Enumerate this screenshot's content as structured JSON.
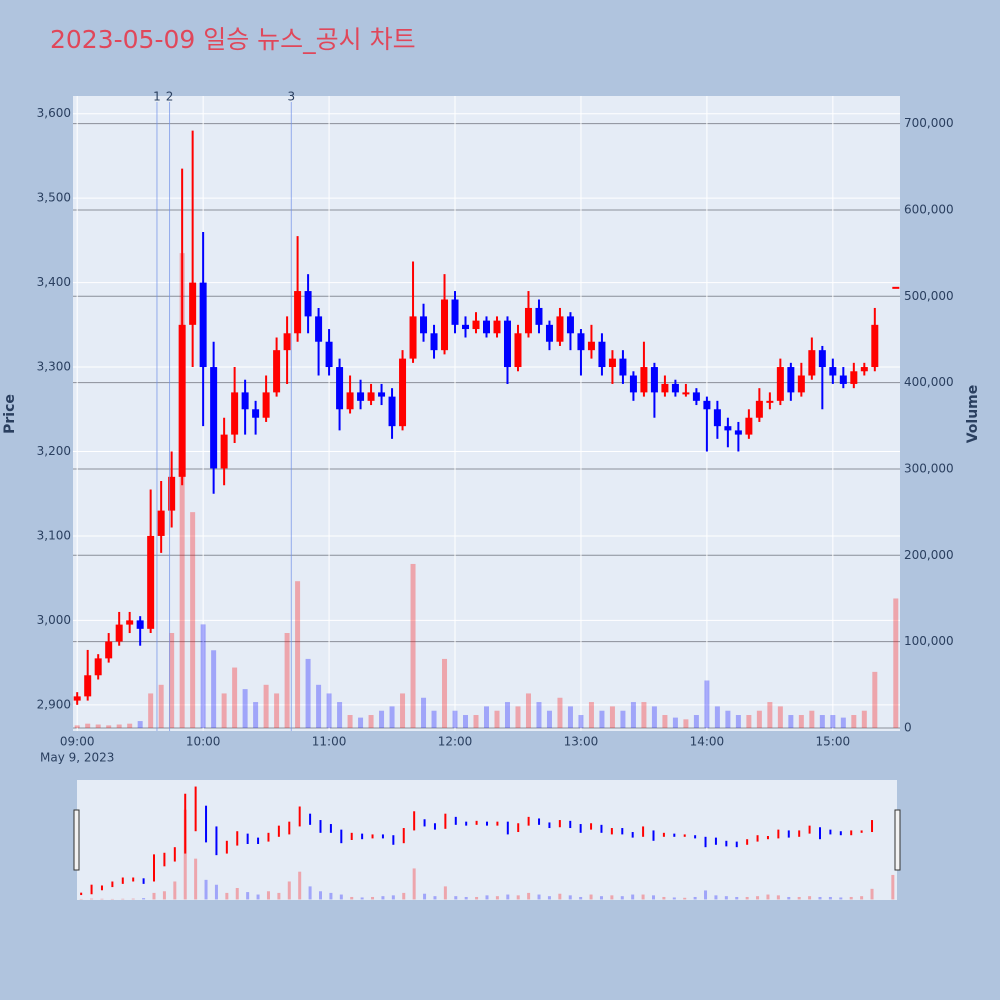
{
  "chart_data": {
    "type": "candlestick",
    "title": "2023-05-09 일승 뉴스_공시 차트",
    "x": [
      "09:00",
      "09:05",
      "09:10",
      "09:15",
      "09:20",
      "09:25",
      "09:30",
      "09:35",
      "09:40",
      "09:45",
      "09:50",
      "09:55",
      "10:00",
      "10:05",
      "10:10",
      "10:15",
      "10:20",
      "10:25",
      "10:30",
      "10:35",
      "10:40",
      "10:45",
      "10:50",
      "10:55",
      "11:00",
      "11:05",
      "11:10",
      "11:15",
      "11:20",
      "11:25",
      "11:30",
      "11:35",
      "11:40",
      "11:45",
      "11:50",
      "11:55",
      "12:00",
      "12:05",
      "12:10",
      "12:15",
      "12:20",
      "12:25",
      "12:30",
      "12:35",
      "12:40",
      "12:45",
      "12:50",
      "12:55",
      "13:00",
      "13:05",
      "13:10",
      "13:15",
      "13:20",
      "13:25",
      "13:30",
      "13:35",
      "13:40",
      "13:45",
      "13:50",
      "13:55",
      "14:00",
      "14:05",
      "14:10",
      "14:15",
      "14:20",
      "14:25",
      "14:30",
      "14:35",
      "14:40",
      "14:45",
      "14:50",
      "14:55",
      "15:00",
      "15:05",
      "15:10",
      "15:15",
      "15:20",
      "15:30"
    ],
    "open": [
      2905,
      2910,
      2935,
      2955,
      2975,
      2995,
      3000,
      2990,
      3100,
      3130,
      3170,
      3350,
      3400,
      3300,
      3180,
      3220,
      3270,
      3250,
      3240,
      3270,
      3320,
      3340,
      3390,
      3360,
      3330,
      3300,
      3250,
      3270,
      3260,
      3270,
      3265,
      3230,
      3310,
      3360,
      3340,
      3320,
      3380,
      3350,
      3345,
      3355,
      3340,
      3355,
      3300,
      3340,
      3370,
      3350,
      3330,
      3360,
      3340,
      3320,
      3330,
      3300,
      3310,
      3290,
      3270,
      3300,
      3270,
      3280,
      3270,
      3270,
      3260,
      3250,
      3230,
      3225,
      3220,
      3240,
      3260,
      3260,
      3300,
      3270,
      3290,
      3320,
      3300,
      3290,
      3280,
      3295,
      3300,
      3395
    ],
    "high": [
      2915,
      2965,
      2960,
      2985,
      3010,
      3010,
      3005,
      3155,
      3165,
      3200,
      3535,
      3580,
      3460,
      3330,
      3240,
      3300,
      3285,
      3260,
      3290,
      3335,
      3360,
      3455,
      3410,
      3370,
      3345,
      3310,
      3290,
      3285,
      3280,
      3280,
      3275,
      3320,
      3425,
      3375,
      3350,
      3410,
      3390,
      3360,
      3365,
      3360,
      3360,
      3360,
      3350,
      3390,
      3380,
      3355,
      3370,
      3365,
      3345,
      3350,
      3340,
      3320,
      3320,
      3295,
      3330,
      3305,
      3290,
      3285,
      3280,
      3275,
      3265,
      3260,
      3240,
      3235,
      3250,
      3275,
      3270,
      3310,
      3305,
      3305,
      3335,
      3325,
      3310,
      3300,
      3305,
      3305,
      3370,
      3395
    ],
    "low": [
      2900,
      2905,
      2930,
      2950,
      2970,
      2985,
      2970,
      2985,
      3080,
      3110,
      3160,
      3300,
      3230,
      3150,
      3160,
      3210,
      3220,
      3220,
      3235,
      3265,
      3280,
      3330,
      3340,
      3290,
      3290,
      3225,
      3245,
      3250,
      3255,
      3255,
      3215,
      3225,
      3305,
      3330,
      3310,
      3315,
      3340,
      3335,
      3340,
      3335,
      3335,
      3280,
      3295,
      3335,
      3340,
      3320,
      3325,
      3320,
      3290,
      3310,
      3290,
      3280,
      3280,
      3260,
      3265,
      3240,
      3265,
      3265,
      3265,
      3255,
      3200,
      3215,
      3205,
      3200,
      3215,
      3235,
      3250,
      3255,
      3260,
      3265,
      3285,
      3250,
      3280,
      3275,
      3275,
      3290,
      3295,
      3395
    ],
    "close": [
      2910,
      2935,
      2955,
      2975,
      2995,
      3000,
      2990,
      3100,
      3130,
      3170,
      3350,
      3400,
      3300,
      3180,
      3220,
      3270,
      3250,
      3240,
      3270,
      3320,
      3340,
      3390,
      3360,
      3330,
      3300,
      3250,
      3270,
      3260,
      3270,
      3265,
      3230,
      3310,
      3360,
      3340,
      3320,
      3380,
      3350,
      3345,
      3355,
      3340,
      3355,
      3300,
      3340,
      3370,
      3350,
      3330,
      3360,
      3340,
      3320,
      3330,
      3300,
      3310,
      3290,
      3270,
      3300,
      3270,
      3280,
      3270,
      3270,
      3260,
      3250,
      3230,
      3225,
      3220,
      3240,
      3260,
      3260,
      3300,
      3270,
      3290,
      3320,
      3300,
      3290,
      3280,
      3295,
      3300,
      3350,
      3395
    ],
    "volume": [
      3000,
      5000,
      4000,
      3000,
      4000,
      5000,
      8000,
      40000,
      50000,
      110000,
      550000,
      250000,
      120000,
      90000,
      40000,
      70000,
      45000,
      30000,
      50000,
      40000,
      110000,
      170000,
      80000,
      50000,
      40000,
      30000,
      15000,
      12000,
      15000,
      20000,
      25000,
      40000,
      190000,
      35000,
      20000,
      80000,
      20000,
      15000,
      15000,
      25000,
      20000,
      30000,
      25000,
      40000,
      30000,
      20000,
      35000,
      25000,
      15000,
      30000,
      20000,
      25000,
      20000,
      30000,
      30000,
      25000,
      15000,
      12000,
      10000,
      15000,
      55000,
      25000,
      20000,
      15000,
      15000,
      20000,
      30000,
      25000,
      15000,
      15000,
      20000,
      15000,
      15000,
      12000,
      15000,
      20000,
      65000,
      150000
    ],
    "up_color": "#ff0000",
    "down_color": "#0000ff",
    "xlim": [
      "08:58",
      "15:32"
    ],
    "xticks": [
      "09:00",
      "10:00",
      "11:00",
      "12:00",
      "13:00",
      "14:00",
      "15:00"
    ],
    "x_sublabel": "May 9, 2023",
    "ylim": [
      2869,
      3621
    ],
    "yticks": [
      {
        "value": 2900,
        "label": "2,900"
      },
      {
        "value": 3000,
        "label": "3,000"
      },
      {
        "value": 3100,
        "label": "3,100"
      },
      {
        "value": 3200,
        "label": "3,200"
      },
      {
        "value": 3300,
        "label": "3,300"
      },
      {
        "value": 3400,
        "label": "3,400"
      },
      {
        "value": 3500,
        "label": "3,500"
      },
      {
        "value": 3600,
        "label": "3,600"
      }
    ],
    "y2lim": [
      -3500,
      732000
    ],
    "y2ticks": [
      0,
      {
        "value": 100000,
        "label": "100,000"
      },
      {
        "value": 200000,
        "label": "200,000"
      },
      {
        "value": 300000,
        "label": "300,000"
      },
      {
        "value": 400000,
        "label": "400,000"
      },
      {
        "value": 500000,
        "label": "500,000"
      },
      {
        "value": 600000,
        "label": "600,000"
      },
      {
        "value": 700000,
        "label": "700,000"
      }
    ],
    "ylabel": "Price",
    "y2label": "Volume",
    "annotations": [
      {
        "x": "09:38",
        "text": "1"
      },
      {
        "x": "09:44",
        "text": "2"
      },
      {
        "x": "10:42",
        "text": "3"
      }
    ],
    "rangeslider": true
  }
}
